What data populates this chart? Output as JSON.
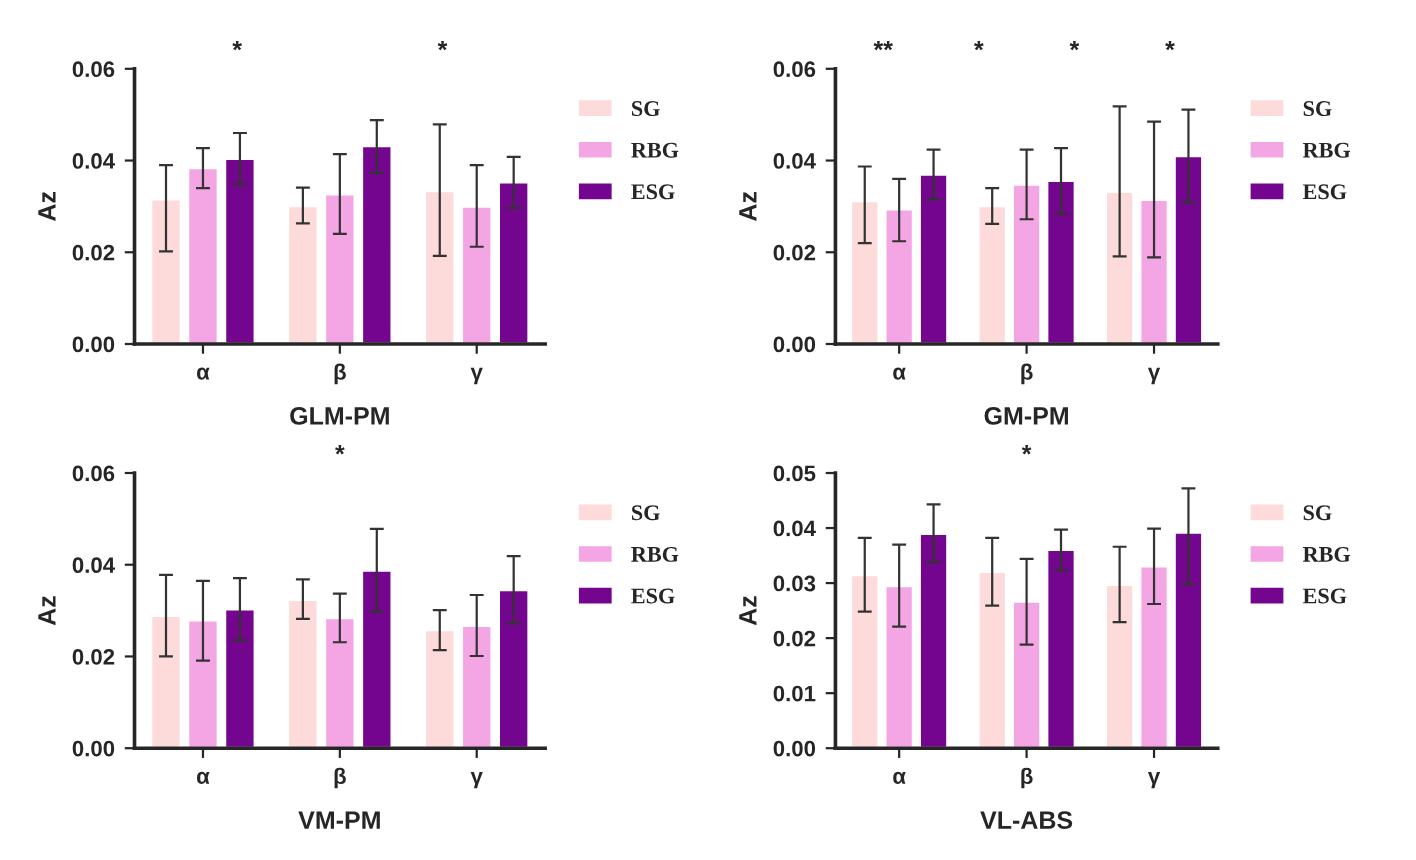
{
  "chart_data": [
    {
      "type": "bar",
      "xlabel": "GLM-PM",
      "ylabel": "Az",
      "categories": [
        "α",
        "β",
        "γ"
      ],
      "ylim": [
        0,
        0.06
      ],
      "yticks": [
        {
          "value": 0,
          "label": "0.00"
        },
        {
          "value": 0.02,
          "label": "0.02"
        },
        {
          "value": 0.04,
          "label": "0.04"
        },
        {
          "value": 0.06,
          "label": "0.06"
        }
      ],
      "legend": "right",
      "grid": false,
      "series": [
        {
          "name": "SG",
          "color": "#fddbdb",
          "values": [
            0.0316,
            0.0301,
            0.0334
          ],
          "errors": [
            [
              0.0202,
              0.039
            ],
            [
              0.0263,
              0.0341
            ],
            [
              0.0192,
              0.0479
            ]
          ]
        },
        {
          "name": "RBG",
          "color": "#f4a6e4",
          "values": [
            0.0384,
            0.0327,
            0.03
          ],
          "errors": [
            [
              0.034,
              0.0427
            ],
            [
              0.024,
              0.0414
            ],
            [
              0.0212,
              0.039
            ]
          ]
        },
        {
          "name": "ESG",
          "color": "#74058f",
          "values": [
            0.0404,
            0.0432,
            0.0353
          ],
          "errors": [
            [
              0.0348,
              0.046
            ],
            [
              0.0373,
              0.0488
            ],
            [
              0.0297,
              0.0408
            ]
          ]
        }
      ],
      "annotations": [
        "*",
        "*"
      ]
    },
    {
      "type": "bar",
      "xlabel": "GM-PM",
      "ylabel": "Az",
      "categories": [
        "α",
        "β",
        "γ"
      ],
      "ylim": [
        0,
        0.06
      ],
      "yticks": [
        {
          "value": 0,
          "label": "0.00"
        },
        {
          "value": 0.02,
          "label": "0.02"
        },
        {
          "value": 0.04,
          "label": "0.04"
        },
        {
          "value": 0.06,
          "label": "0.06"
        }
      ],
      "legend": "right",
      "grid": false,
      "series": [
        {
          "name": "SG",
          "color": "#fddbdb",
          "values": [
            0.0312,
            0.0301,
            0.0332
          ],
          "errors": [
            [
              0.022,
              0.0387
            ],
            [
              0.0262,
              0.034
            ],
            [
              0.0191,
              0.0518
            ]
          ]
        },
        {
          "name": "RBG",
          "color": "#f4a6e4",
          "values": [
            0.0294,
            0.0348,
            0.0315
          ],
          "errors": [
            [
              0.0224,
              0.036
            ],
            [
              0.0272,
              0.0424
            ],
            [
              0.0189,
              0.0485
            ]
          ]
        },
        {
          "name": "ESG",
          "color": "#74058f",
          "values": [
            0.037,
            0.0356,
            0.041
          ],
          "errors": [
            [
              0.0316,
              0.0424
            ],
            [
              0.0284,
              0.0427
            ],
            [
              0.0309,
              0.0511
            ]
          ]
        }
      ],
      "annotations": [
        "**",
        "*",
        "*",
        "*"
      ]
    },
    {
      "type": "bar",
      "xlabel": "VM-PM",
      "ylabel": "Az",
      "categories": [
        "α",
        "β",
        "γ"
      ],
      "ylim": [
        0,
        0.06
      ],
      "yticks": [
        {
          "value": 0,
          "label": "0.00"
        },
        {
          "value": 0.02,
          "label": "0.02"
        },
        {
          "value": 0.04,
          "label": "0.04"
        },
        {
          "value": 0.06,
          "label": "0.06"
        }
      ],
      "legend": "right",
      "grid": false,
      "series": [
        {
          "name": "SG",
          "color": "#fddbdb",
          "values": [
            0.0289,
            0.0324,
            0.0258
          ],
          "errors": [
            [
              0.02,
              0.0378
            ],
            [
              0.0282,
              0.0368
            ],
            [
              0.0214,
              0.0301
            ]
          ]
        },
        {
          "name": "RBG",
          "color": "#f4a6e4",
          "values": [
            0.0279,
            0.0284,
            0.0267
          ],
          "errors": [
            [
              0.0191,
              0.0365
            ],
            [
              0.0231,
              0.0337
            ],
            [
              0.0201,
              0.0334
            ]
          ]
        },
        {
          "name": "ESG",
          "color": "#74058f",
          "values": [
            0.0303,
            0.0388,
            0.0345
          ],
          "errors": [
            [
              0.0235,
              0.0371
            ],
            [
              0.0297,
              0.0478
            ],
            [
              0.0272,
              0.0419
            ]
          ]
        }
      ],
      "annotations": [
        "*"
      ]
    },
    {
      "type": "bar",
      "xlabel": "VL-ABS",
      "ylabel": "Az",
      "categories": [
        "α",
        "β",
        "γ"
      ],
      "ylim": [
        0,
        0.05
      ],
      "yticks": [
        {
          "value": 0,
          "label": "0.00"
        },
        {
          "value": 0.01,
          "label": "0.01"
        },
        {
          "value": 0.02,
          "label": "0.02"
        },
        {
          "value": 0.03,
          "label": "0.03"
        },
        {
          "value": 0.04,
          "label": "0.04"
        },
        {
          "value": 0.05,
          "label": "0.05"
        }
      ],
      "legend": "right",
      "grid": false,
      "series": [
        {
          "name": "SG",
          "color": "#fddbdb",
          "values": [
            0.0315,
            0.0321,
            0.0297
          ],
          "errors": [
            [
              0.0248,
              0.0382
            ],
            [
              0.0259,
              0.0382
            ],
            [
              0.0229,
              0.0366
            ]
          ]
        },
        {
          "name": "RBG",
          "color": "#f4a6e4",
          "values": [
            0.0295,
            0.0267,
            0.0331
          ],
          "errors": [
            [
              0.0221,
              0.037
            ],
            [
              0.0188,
              0.0344
            ],
            [
              0.0262,
              0.0399
            ]
          ]
        },
        {
          "name": "ESG",
          "color": "#74058f",
          "values": [
            0.039,
            0.0361,
            0.0392
          ],
          "errors": [
            [
              0.0338,
              0.0443
            ],
            [
              0.0323,
              0.0397
            ],
            [
              0.0298,
              0.0472
            ]
          ]
        }
      ],
      "annotations": [
        "*"
      ]
    }
  ]
}
